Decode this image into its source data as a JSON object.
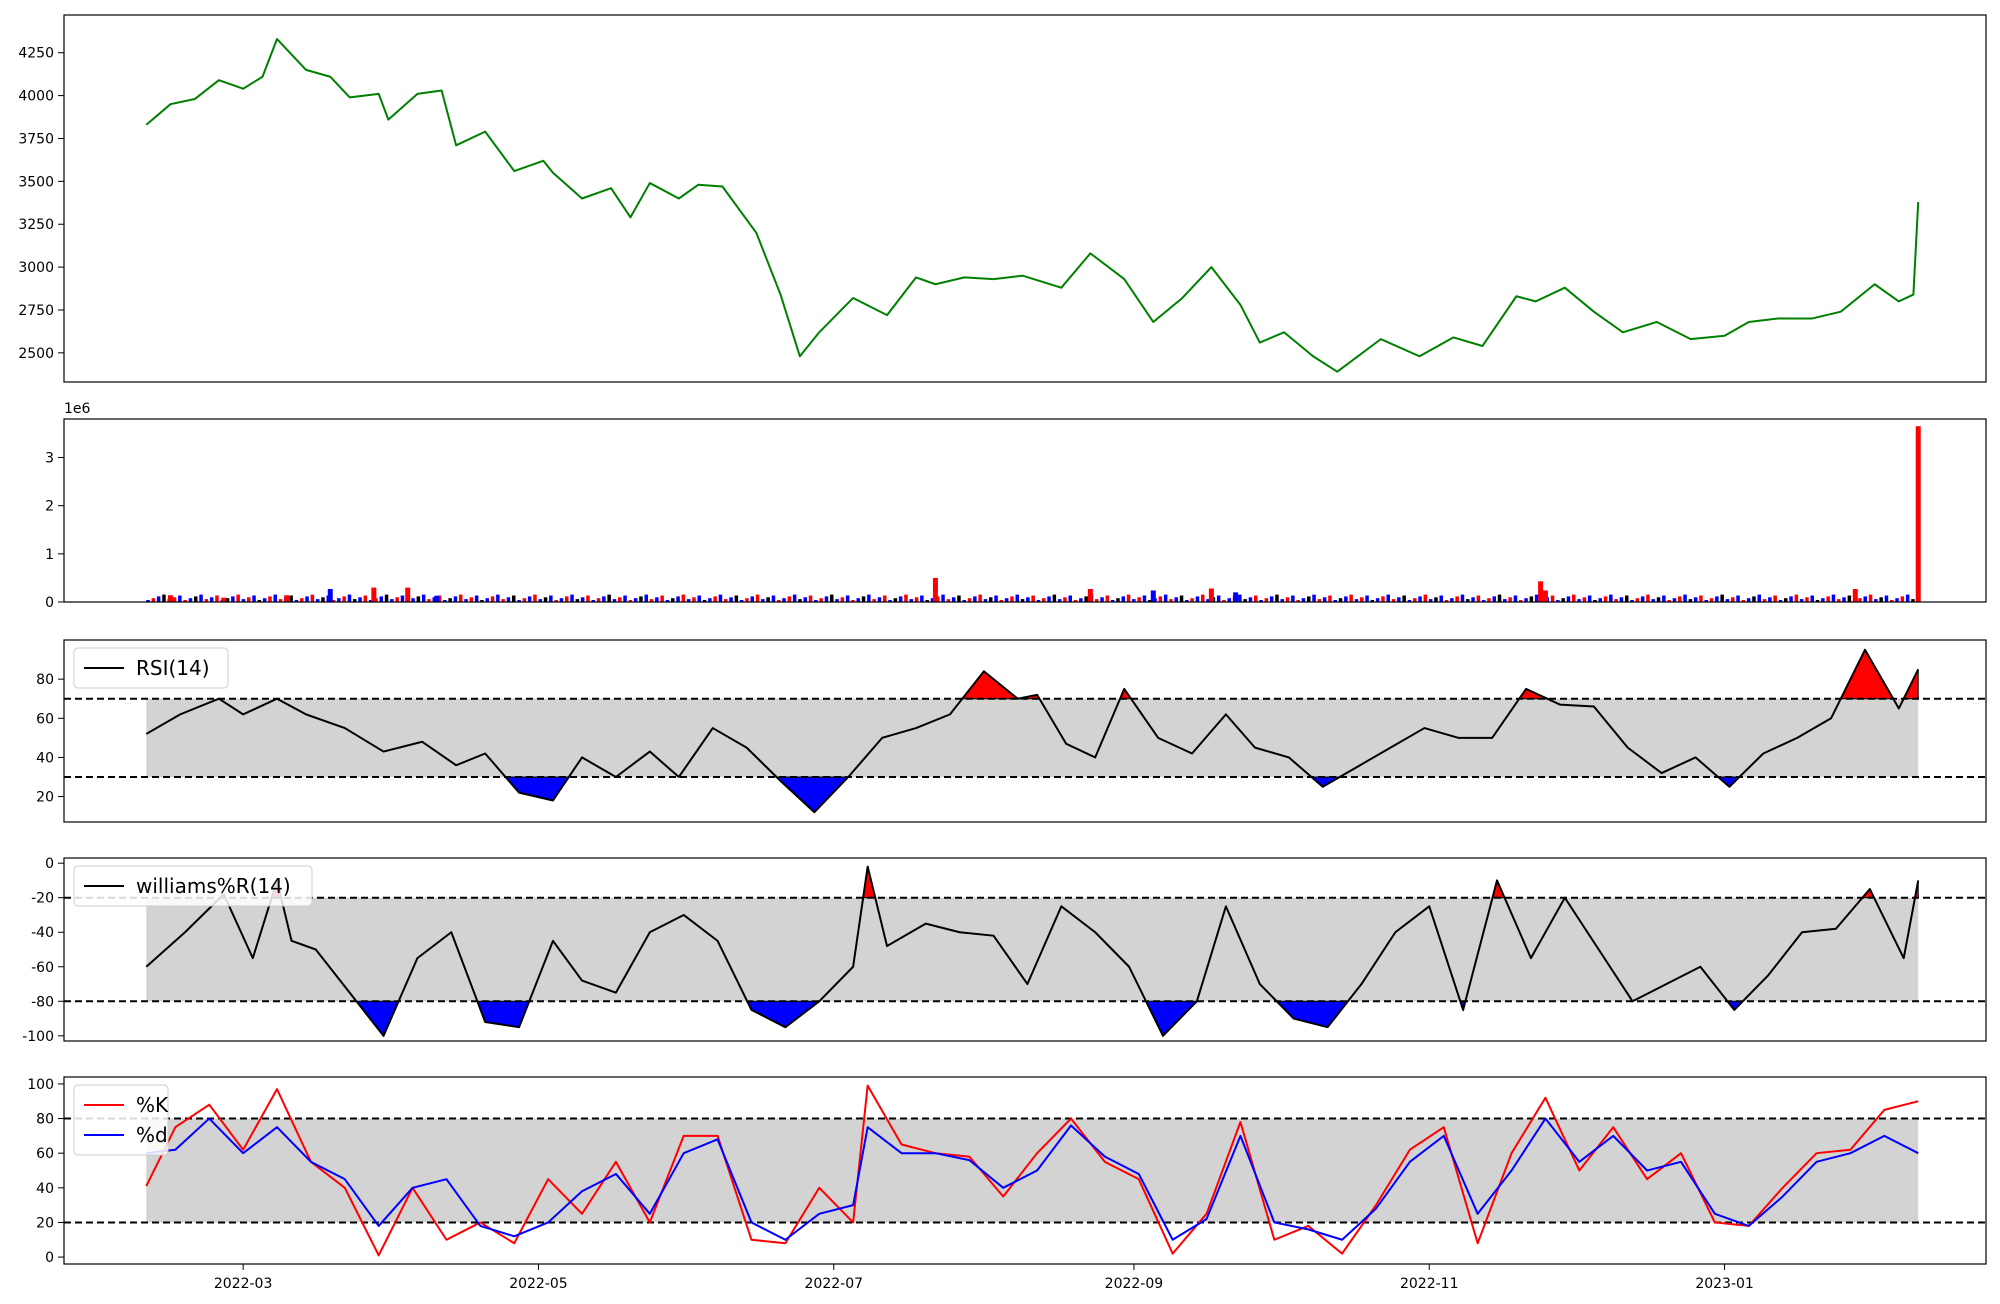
{
  "chart_data": [
    {
      "type": "line",
      "panel": "price",
      "title": "",
      "xlabel": "",
      "ylabel": "",
      "x_range": [
        "2022-01-23",
        "2023-02-24"
      ],
      "ylim": [
        2330,
        4470
      ],
      "yticks": [
        2500,
        2750,
        3000,
        3250,
        3500,
        3750,
        4000,
        4250
      ],
      "grid": false,
      "line_color": "#008000",
      "series": [
        {
          "x": [
            "2022-02-09",
            "2022-02-14",
            "2022-02-19",
            "2022-02-24",
            "2022-03-01",
            "2022-03-05",
            "2022-03-08",
            "2022-03-14",
            "2022-03-19",
            "2022-03-23",
            "2022-03-29",
            "2022-03-31",
            "2022-04-06",
            "2022-04-11",
            "2022-04-14",
            "2022-04-20",
            "2022-04-26",
            "2022-05-02",
            "2022-05-04",
            "2022-05-10",
            "2022-05-16",
            "2022-05-20",
            "2022-05-24",
            "2022-05-30",
            "2022-06-03",
            "2022-06-08",
            "2022-06-15",
            "2022-06-20",
            "2022-06-24",
            "2022-06-28",
            "2022-07-05",
            "2022-07-12",
            "2022-07-18",
            "2022-07-22",
            "2022-07-28",
            "2022-08-03",
            "2022-08-09",
            "2022-08-17",
            "2022-08-23",
            "2022-08-30",
            "2022-09-05",
            "2022-09-11",
            "2022-09-17",
            "2022-09-23",
            "2022-09-27",
            "2022-10-02",
            "2022-10-08",
            "2022-10-13",
            "2022-10-22",
            "2022-10-30",
            "2022-11-06",
            "2022-11-12",
            "2022-11-19",
            "2022-11-23",
            "2022-11-29",
            "2022-12-05",
            "2022-12-11",
            "2022-12-18",
            "2022-12-25",
            "2023-01-01",
            "2023-01-06",
            "2023-01-12",
            "2023-01-19",
            "2023-01-25",
            "2023-02-01",
            "2023-02-06",
            "2023-02-09",
            "2023-02-10"
          ],
          "y": [
            3830,
            3950,
            3980,
            4090,
            4040,
            4110,
            4330,
            4150,
            4110,
            3990,
            4010,
            3860,
            4010,
            4030,
            3710,
            3790,
            3560,
            3620,
            3550,
            3400,
            3460,
            3290,
            3490,
            3400,
            3480,
            3470,
            3200,
            2840,
            2480,
            2620,
            2820,
            2720,
            2940,
            2900,
            2940,
            2930,
            2950,
            2880,
            3080,
            2930,
            2680,
            2820,
            3000,
            2780,
            2560,
            2620,
            2480,
            2390,
            2580,
            2480,
            2590,
            2540,
            2830,
            2800,
            2880,
            2740,
            2620,
            2680,
            2580,
            2600,
            2680,
            2700,
            2700,
            2740,
            2900,
            2800,
            2840,
            3380
          ]
        }
      ]
    },
    {
      "type": "bar",
      "panel": "volume",
      "title": "",
      "xlabel": "",
      "ylabel": "",
      "scale_label": "1e6",
      "ylim": [
        0,
        3.8
      ],
      "yticks": [
        0,
        1,
        2,
        3
      ],
      "grid": false,
      "colors": {
        "up": "#ff0000",
        "down": "#0000ff",
        "flat": "#000000"
      },
      "x": [
        "2022-02-14",
        "2022-02-25",
        "2022-03-10",
        "2022-03-19",
        "2022-03-28",
        "2022-04-04",
        "2022-04-10",
        "2022-07-22",
        "2022-08-23",
        "2022-09-05",
        "2022-09-17",
        "2022-09-22",
        "2022-11-24",
        "2022-11-25",
        "2023-01-28",
        "2023-02-10"
      ],
      "values": [
        0.14,
        0.09,
        0.14,
        0.27,
        0.3,
        0.3,
        0.13,
        0.5,
        0.27,
        0.24,
        0.28,
        0.2,
        0.43,
        0.24,
        0.27,
        3.65
      ],
      "directions": [
        "up",
        "up",
        "up",
        "down",
        "up",
        "up",
        "down",
        "up",
        "up",
        "down",
        "up",
        "down",
        "up",
        "up",
        "up",
        "up"
      ],
      "base_level_note": ""
    },
    {
      "type": "line",
      "panel": "rsi",
      "title": "",
      "xlabel": "",
      "ylabel": "",
      "ylim": [
        7,
        100
      ],
      "yticks": [
        20,
        40,
        60,
        80
      ],
      "band": [
        30,
        70
      ],
      "band_color": "#d3d3d3",
      "over_color": "#ff0000",
      "under_color": "#0000ff",
      "line_color": "#000000",
      "legend": {
        "position": "upper-left",
        "label": "RSI(14)"
      },
      "series": [
        {
          "name": "RSI(14)",
          "x": [
            "2022-02-09",
            "2022-02-16",
            "2022-02-24",
            "2022-03-01",
            "2022-03-08",
            "2022-03-14",
            "2022-03-22",
            "2022-03-30",
            "2022-04-07",
            "2022-04-14",
            "2022-04-20",
            "2022-04-27",
            "2022-05-04",
            "2022-05-10",
            "2022-05-17",
            "2022-05-24",
            "2022-05-30",
            "2022-06-06",
            "2022-06-13",
            "2022-06-20",
            "2022-06-27",
            "2022-07-04",
            "2022-07-11",
            "2022-07-18",
            "2022-07-25",
            "2022-08-01",
            "2022-08-08",
            "2022-08-12",
            "2022-08-18",
            "2022-08-24",
            "2022-08-30",
            "2022-09-06",
            "2022-09-13",
            "2022-09-20",
            "2022-09-26",
            "2022-10-03",
            "2022-10-10",
            "2022-10-17",
            "2022-10-24",
            "2022-10-31",
            "2022-11-07",
            "2022-11-14",
            "2022-11-21",
            "2022-11-28",
            "2022-12-05",
            "2022-12-12",
            "2022-12-19",
            "2022-12-26",
            "2023-01-02",
            "2023-01-09",
            "2023-01-16",
            "2023-01-23",
            "2023-01-30",
            "2023-02-06",
            "2023-02-10"
          ],
          "y": [
            52,
            62,
            70,
            62,
            70,
            62,
            55,
            43,
            48,
            36,
            42,
            22,
            18,
            40,
            30,
            43,
            30,
            55,
            45,
            28,
            12,
            30,
            50,
            55,
            62,
            84,
            70,
            72,
            47,
            40,
            75,
            50,
            42,
            62,
            45,
            40,
            25,
            35,
            45,
            55,
            50,
            50,
            75,
            67,
            66,
            45,
            32,
            40,
            25,
            42,
            50,
            60,
            95,
            65,
            85
          ]
        }
      ]
    },
    {
      "type": "line",
      "panel": "williams",
      "title": "",
      "xlabel": "",
      "ylabel": "",
      "ylim": [
        -103,
        3
      ],
      "yticks": [
        0,
        -20,
        -40,
        -60,
        -80,
        -100
      ],
      "band": [
        -80,
        -20
      ],
      "band_color": "#d3d3d3",
      "over_color": "#ff0000",
      "under_color": "#0000ff",
      "line_color": "#000000",
      "legend": {
        "position": "upper-left",
        "label": "williams%R(14)"
      },
      "series": [
        {
          "name": "williams%R(14)",
          "x": [
            "2022-02-09",
            "2022-02-17",
            "2022-02-25",
            "2022-03-03",
            "2022-03-08",
            "2022-03-11",
            "2022-03-16",
            "2022-03-23",
            "2022-03-30",
            "2022-04-06",
            "2022-04-13",
            "2022-04-20",
            "2022-04-27",
            "2022-05-04",
            "2022-05-10",
            "2022-05-17",
            "2022-05-24",
            "2022-05-31",
            "2022-06-07",
            "2022-06-14",
            "2022-06-21",
            "2022-06-28",
            "2022-07-05",
            "2022-07-08",
            "2022-07-12",
            "2022-07-20",
            "2022-07-27",
            "2022-08-03",
            "2022-08-10",
            "2022-08-17",
            "2022-08-24",
            "2022-08-31",
            "2022-09-07",
            "2022-09-14",
            "2022-09-20",
            "2022-09-27",
            "2022-10-04",
            "2022-10-11",
            "2022-10-18",
            "2022-10-25",
            "2022-11-01",
            "2022-11-08",
            "2022-11-15",
            "2022-11-22",
            "2022-11-29",
            "2022-12-06",
            "2022-12-13",
            "2022-12-20",
            "2022-12-27",
            "2023-01-03",
            "2023-01-10",
            "2023-01-17",
            "2023-01-24",
            "2023-01-31",
            "2023-02-07",
            "2023-02-10"
          ],
          "y": [
            -60,
            -40,
            -18,
            -55,
            -10,
            -45,
            -50,
            -75,
            -100,
            -55,
            -40,
            -92,
            -95,
            -45,
            -68,
            -75,
            -40,
            -30,
            -45,
            -85,
            -95,
            -80,
            -60,
            -2,
            -48,
            -35,
            -40,
            -42,
            -70,
            -25,
            -40,
            -60,
            -100,
            -80,
            -25,
            -70,
            -90,
            -95,
            -70,
            -40,
            -25,
            -85,
            -10,
            -55,
            -20,
            -50,
            -80,
            -70,
            -60,
            -85,
            -65,
            -40,
            -38,
            -15,
            -55,
            -10
          ]
        }
      ]
    },
    {
      "type": "line",
      "panel": "stochastic",
      "title": "",
      "xlabel": "",
      "ylabel": "",
      "ylim": [
        -4,
        104
      ],
      "yticks": [
        0,
        20,
        40,
        60,
        80,
        100
      ],
      "band": [
        20,
        80
      ],
      "band_color": "#d3d3d3",
      "xticks": [
        "2022-03-01",
        "2022-05-01",
        "2022-07-01",
        "2022-09-01",
        "2022-11-01",
        "2023-01-01"
      ],
      "xtick_labels": [
        "2022-03",
        "2022-05",
        "2022-07",
        "2022-09",
        "2022-11",
        "2023-01"
      ],
      "legend": {
        "position": "upper-left",
        "entries": [
          "%K",
          "%d"
        ]
      },
      "series": [
        {
          "name": "%K",
          "color": "#ff0000",
          "x": [
            "2022-02-09",
            "2022-02-15",
            "2022-02-22",
            "2022-03-01",
            "2022-03-08",
            "2022-03-15",
            "2022-03-22",
            "2022-03-29",
            "2022-04-05",
            "2022-04-12",
            "2022-04-19",
            "2022-04-26",
            "2022-05-03",
            "2022-05-10",
            "2022-05-17",
            "2022-05-24",
            "2022-05-31",
            "2022-06-07",
            "2022-06-14",
            "2022-06-21",
            "2022-06-28",
            "2022-07-05",
            "2022-07-08",
            "2022-07-15",
            "2022-07-22",
            "2022-07-29",
            "2022-08-05",
            "2022-08-12",
            "2022-08-19",
            "2022-08-26",
            "2022-09-02",
            "2022-09-09",
            "2022-09-16",
            "2022-09-23",
            "2022-09-30",
            "2022-10-07",
            "2022-10-14",
            "2022-10-21",
            "2022-10-28",
            "2022-11-04",
            "2022-11-11",
            "2022-11-18",
            "2022-11-25",
            "2022-12-02",
            "2022-12-09",
            "2022-12-16",
            "2022-12-23",
            "2022-12-30",
            "2023-01-06",
            "2023-01-13",
            "2023-01-20",
            "2023-01-27",
            "2023-02-03",
            "2023-02-10"
          ],
          "y": [
            41,
            75,
            88,
            62,
            97,
            55,
            40,
            1,
            40,
            10,
            20,
            8,
            45,
            25,
            55,
            20,
            70,
            70,
            10,
            8,
            40,
            20,
            99,
            65,
            60,
            58,
            35,
            60,
            80,
            55,
            45,
            2,
            25,
            78,
            10,
            18,
            2,
            30,
            62,
            75,
            8,
            60,
            92,
            50,
            75,
            45,
            60,
            20,
            18,
            40,
            60,
            62,
            85,
            90
          ]
        },
        {
          "name": "%d",
          "color": "#0000ff",
          "x": [
            "2022-02-09",
            "2022-02-15",
            "2022-02-22",
            "2022-03-01",
            "2022-03-08",
            "2022-03-15",
            "2022-03-22",
            "2022-03-29",
            "2022-04-05",
            "2022-04-12",
            "2022-04-19",
            "2022-04-26",
            "2022-05-03",
            "2022-05-10",
            "2022-05-17",
            "2022-05-24",
            "2022-05-31",
            "2022-06-07",
            "2022-06-14",
            "2022-06-21",
            "2022-06-28",
            "2022-07-05",
            "2022-07-08",
            "2022-07-15",
            "2022-07-22",
            "2022-07-29",
            "2022-08-05",
            "2022-08-12",
            "2022-08-19",
            "2022-08-26",
            "2022-09-02",
            "2022-09-09",
            "2022-09-16",
            "2022-09-23",
            "2022-09-30",
            "2022-10-07",
            "2022-10-14",
            "2022-10-21",
            "2022-10-28",
            "2022-11-04",
            "2022-11-11",
            "2022-11-18",
            "2022-11-25",
            "2022-12-02",
            "2022-12-09",
            "2022-12-16",
            "2022-12-23",
            "2022-12-30",
            "2023-01-06",
            "2023-01-13",
            "2023-01-20",
            "2023-01-27",
            "2023-02-03",
            "2023-02-10"
          ],
          "y": [
            60,
            62,
            80,
            60,
            75,
            55,
            45,
            18,
            40,
            45,
            18,
            12,
            20,
            38,
            48,
            25,
            60,
            68,
            20,
            10,
            25,
            30,
            75,
            60,
            60,
            56,
            40,
            50,
            76,
            58,
            48,
            10,
            22,
            70,
            20,
            16,
            10,
            28,
            55,
            70,
            25,
            50,
            80,
            55,
            70,
            50,
            55,
            25,
            18,
            35,
            55,
            60,
            70,
            60
          ]
        }
      ]
    }
  ]
}
